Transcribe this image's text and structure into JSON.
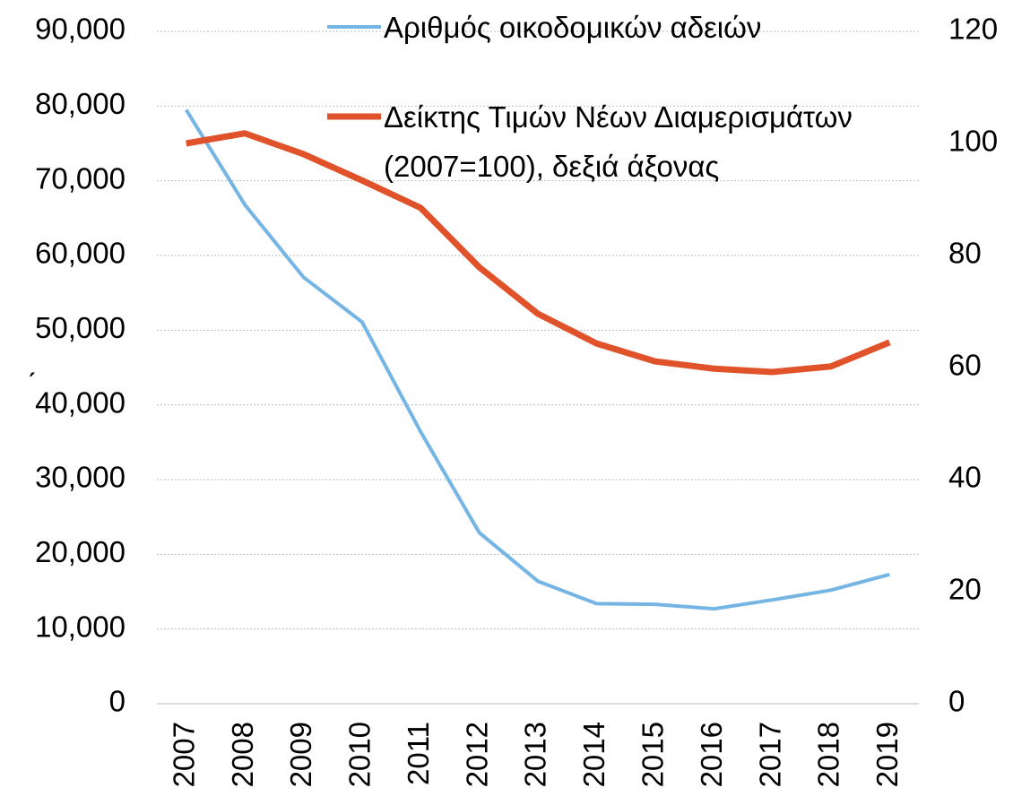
{
  "chart_data": {
    "type": "line",
    "categories": [
      "2007",
      "2008",
      "2009",
      "2010",
      "2011",
      "2012",
      "2013",
      "2014",
      "2015",
      "2016",
      "2017",
      "2018",
      "2019"
    ],
    "series": [
      {
        "name": "Αριθμός οικοδομικών αδειών",
        "color": "#74b5e4",
        "axis": "y",
        "values": [
          79500,
          66800,
          57100,
          51100,
          36400,
          22900,
          16400,
          13400,
          13300,
          12700,
          13900,
          15200,
          17300
        ]
      },
      {
        "name": "Δείκτης Τιμών Νέων Διαμερισμάτων\n(2007=100), δεξιά άξονας",
        "color": "#e0522a",
        "axis": "y2",
        "values": [
          100,
          101.8,
          98.1,
          93.4,
          88.5,
          77.9,
          69.6,
          64.3,
          61.1,
          59.8,
          59.2,
          60.2,
          64.5
        ]
      }
    ],
    "ylim": [
      0,
      90000
    ],
    "yticks": [
      0,
      {
        "value": 10000,
        "label": "10,000"
      },
      {
        "value": 20000,
        "label": "20,000"
      },
      {
        "value": 30000,
        "label": "30,000"
      },
      {
        "value": 40000,
        "label": "40,000"
      },
      {
        "value": 50000,
        "label": "50,000"
      },
      {
        "value": 60000,
        "label": "60,000"
      },
      {
        "value": 70000,
        "label": "70,000"
      },
      {
        "value": 80000,
        "label": "80,000"
      },
      {
        "value": 90000,
        "label": "90,000"
      }
    ],
    "y2lim": [
      0,
      120
    ],
    "y2ticks": [
      0,
      20,
      40,
      60,
      80,
      100,
      120
    ],
    "annotation": "ˏ",
    "grid": true
  }
}
